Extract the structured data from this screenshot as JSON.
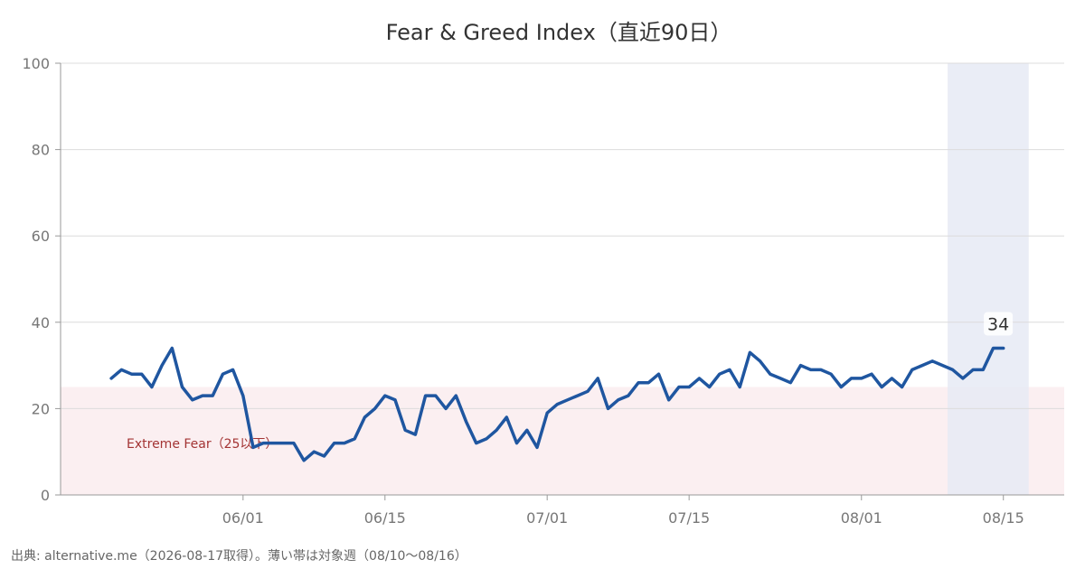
{
  "chart_data": {
    "type": "line",
    "title": "Fear & Greed Index（直近90日）",
    "source": "出典: alternative.me（2026-08-17取得）。薄い帯は対象週（08/10〜08/16）",
    "ylim": [
      0,
      100
    ],
    "yticks": [
      0,
      20,
      40,
      60,
      80,
      100
    ],
    "grid": "horizontal",
    "x_start": "2026-05-19",
    "xlim": [
      "2026-05-14",
      "2026-08-21"
    ],
    "xticks": [
      {
        "date": "2026-06-01",
        "label": "06/01"
      },
      {
        "date": "2026-06-15",
        "label": "06/15"
      },
      {
        "date": "2026-07-01",
        "label": "07/01"
      },
      {
        "date": "2026-07-15",
        "label": "07/15"
      },
      {
        "date": "2026-08-01",
        "label": "08/01"
      },
      {
        "date": "2026-08-15",
        "label": "08/15"
      }
    ],
    "zones": [
      {
        "label": "Extreme Fear（25以下）",
        "from": 0,
        "to": 25,
        "color": "#fbeff1"
      }
    ],
    "highlight": {
      "from": "2026-08-10",
      "to": "2026-08-16",
      "color": "#e6eaf5"
    },
    "series": [
      {
        "color": "#1f56a0",
        "values": [
          27,
          29,
          28,
          28,
          25,
          30,
          34,
          25,
          22,
          23,
          23,
          28,
          29,
          23,
          11,
          12,
          12,
          12,
          12,
          8,
          10,
          9,
          12,
          12,
          13,
          18,
          20,
          23,
          22,
          15,
          14,
          23,
          23,
          20,
          23,
          17,
          12,
          13,
          15,
          18,
          12,
          15,
          11,
          19,
          21,
          22,
          23,
          24,
          27,
          20,
          22,
          23,
          26,
          26,
          28,
          22,
          25,
          25,
          27,
          25,
          28,
          29,
          25,
          33,
          31,
          28,
          27,
          26,
          30,
          29,
          29,
          28,
          25,
          27,
          27,
          28,
          25,
          27,
          25,
          29,
          30,
          31,
          30,
          29,
          27,
          29,
          29,
          34,
          34
        ]
      }
    ],
    "last_value_label": "34"
  }
}
